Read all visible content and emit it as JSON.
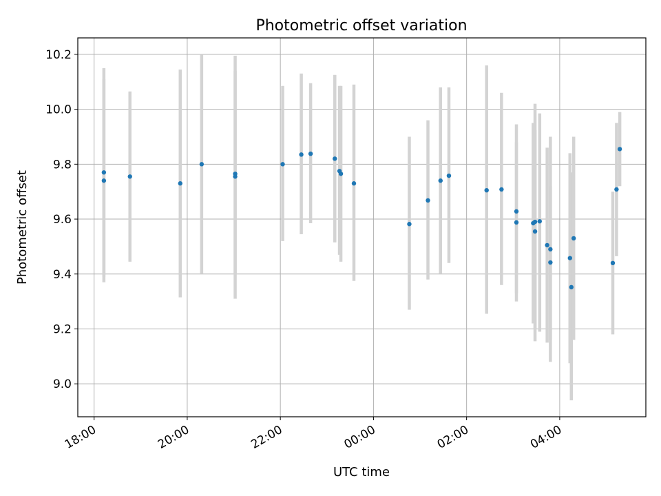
{
  "chart_data": {
    "type": "scatter",
    "title": "Photometric offset variation",
    "xlabel": "UTC time",
    "ylabel": "Photometric offset",
    "x_tick_labels": [
      "18:00",
      "20:00",
      "22:00",
      "00:00",
      "02:00",
      "04:00"
    ],
    "y_tick_labels": [
      "9.0",
      "9.2",
      "9.4",
      "9.6",
      "9.8",
      "10.0",
      "10.2"
    ],
    "x_unit": "hours since 18:00 UTC",
    "xlim": [
      -0.35,
      11.85
    ],
    "ylim": [
      8.88,
      10.26
    ],
    "grid": true,
    "colors": {
      "points": "#1f77b4",
      "errorbars": "#d3d3d3",
      "grid": "#b0b0b0"
    },
    "points": [
      {
        "x": 0.21,
        "y": 9.77,
        "ylow": 9.39,
        "yhigh": 10.15
      },
      {
        "x": 0.21,
        "y": 9.74,
        "ylow": 9.37,
        "yhigh": 10.11
      },
      {
        "x": 0.77,
        "y": 9.755,
        "ylow": 9.445,
        "yhigh": 10.065
      },
      {
        "x": 1.85,
        "y": 9.73,
        "ylow": 9.315,
        "yhigh": 10.145
      },
      {
        "x": 2.31,
        "y": 9.8,
        "ylow": 9.4,
        "yhigh": 10.2
      },
      {
        "x": 3.03,
        "y": 9.765,
        "ylow": 9.4,
        "yhigh": 10.195
      },
      {
        "x": 3.03,
        "y": 9.755,
        "ylow": 9.31,
        "yhigh": 10.14
      },
      {
        "x": 4.05,
        "y": 9.8,
        "ylow": 9.52,
        "yhigh": 10.085
      },
      {
        "x": 4.45,
        "y": 9.835,
        "ylow": 9.545,
        "yhigh": 10.13
      },
      {
        "x": 4.65,
        "y": 9.838,
        "ylow": 9.585,
        "yhigh": 10.095
      },
      {
        "x": 5.17,
        "y": 9.82,
        "ylow": 9.515,
        "yhigh": 10.125
      },
      {
        "x": 5.27,
        "y": 9.775,
        "ylow": 9.47,
        "yhigh": 10.085
      },
      {
        "x": 5.3,
        "y": 9.765,
        "ylow": 9.445,
        "yhigh": 10.085
      },
      {
        "x": 5.58,
        "y": 9.73,
        "ylow": 9.375,
        "yhigh": 10.09
      },
      {
        "x": 6.77,
        "y": 9.582,
        "ylow": 9.27,
        "yhigh": 9.9
      },
      {
        "x": 7.17,
        "y": 9.668,
        "ylow": 9.38,
        "yhigh": 9.96
      },
      {
        "x": 7.44,
        "y": 9.74,
        "ylow": 9.4,
        "yhigh": 10.08
      },
      {
        "x": 7.62,
        "y": 9.758,
        "ylow": 9.44,
        "yhigh": 10.08
      },
      {
        "x": 8.43,
        "y": 9.705,
        "ylow": 9.255,
        "yhigh": 10.16
      },
      {
        "x": 8.75,
        "y": 9.708,
        "ylow": 9.36,
        "yhigh": 10.06
      },
      {
        "x": 9.07,
        "y": 9.628,
        "ylow": 9.3,
        "yhigh": 9.945
      },
      {
        "x": 9.07,
        "y": 9.588,
        "ylow": 9.33,
        "yhigh": 9.88
      },
      {
        "x": 9.43,
        "y": 9.585,
        "ylow": 9.22,
        "yhigh": 9.95
      },
      {
        "x": 9.47,
        "y": 9.59,
        "ylow": 9.155,
        "yhigh": 10.02
      },
      {
        "x": 9.47,
        "y": 9.555,
        "ylow": 9.2,
        "yhigh": 9.925
      },
      {
        "x": 9.57,
        "y": 9.592,
        "ylow": 9.19,
        "yhigh": 9.985
      },
      {
        "x": 9.73,
        "y": 9.505,
        "ylow": 9.15,
        "yhigh": 9.86
      },
      {
        "x": 9.8,
        "y": 9.49,
        "ylow": 9.08,
        "yhigh": 9.9
      },
      {
        "x": 9.8,
        "y": 9.442,
        "ylow": 9.16,
        "yhigh": 9.72
      },
      {
        "x": 10.22,
        "y": 9.458,
        "ylow": 9.075,
        "yhigh": 9.84
      },
      {
        "x": 10.25,
        "y": 9.352,
        "ylow": 8.94,
        "yhigh": 9.77
      },
      {
        "x": 10.3,
        "y": 9.53,
        "ylow": 9.16,
        "yhigh": 9.9
      },
      {
        "x": 11.14,
        "y": 9.44,
        "ylow": 9.18,
        "yhigh": 9.7
      },
      {
        "x": 11.22,
        "y": 9.708,
        "ylow": 9.465,
        "yhigh": 9.95
      },
      {
        "x": 11.29,
        "y": 9.855,
        "ylow": 9.72,
        "yhigh": 9.99
      }
    ]
  }
}
